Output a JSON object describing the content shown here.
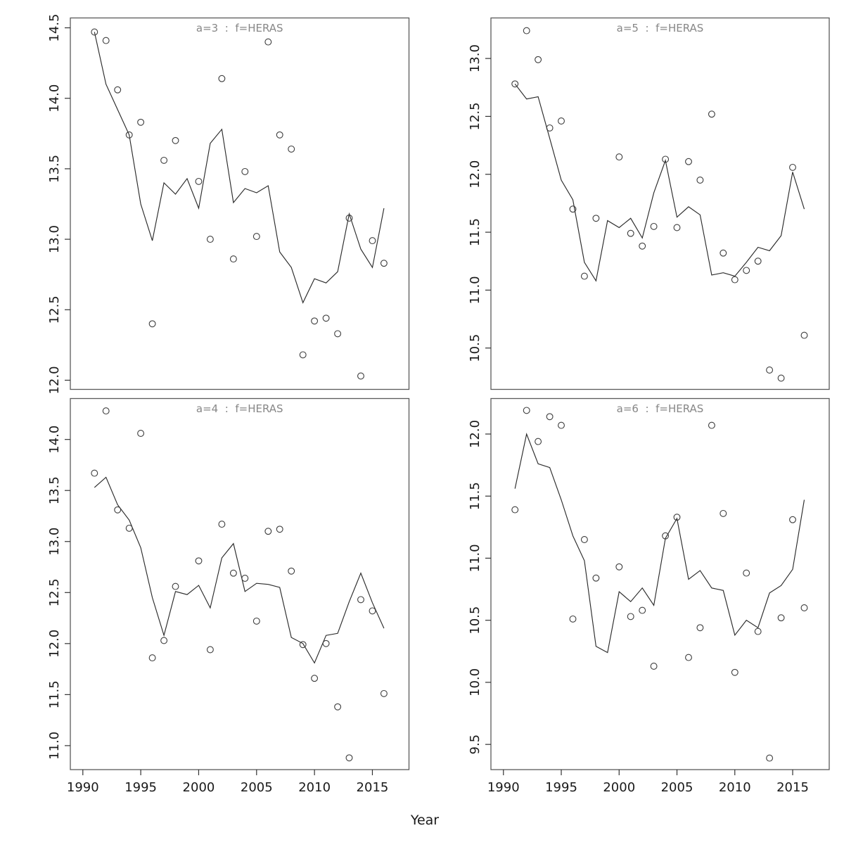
{
  "figure": {
    "xlabel": "Year",
    "background_color": "#ffffff",
    "title_color": "#878787",
    "line_color": "#2b2b2b",
    "point_color": "#3c3c3c",
    "border_color": "#5a5a5a"
  },
  "chart_data": {
    "type": "scatter",
    "description": "2x2 faceted plot of observed (open circles) and fitted (line) log survey index by year",
    "x": [
      1991,
      1992,
      1993,
      1994,
      1995,
      1996,
      1997,
      1998,
      1999,
      2000,
      2001,
      2002,
      2003,
      2004,
      2005,
      2006,
      2007,
      2008,
      2009,
      2010,
      2011,
      2012,
      2013,
      2014,
      2015,
      2016
    ],
    "xlabel": "Year",
    "xlim": [
      1988.92,
      2018.16
    ],
    "x_ticks": [
      {
        "v": 1990,
        "label": "1990"
      },
      {
        "v": 1995,
        "label": "1995"
      },
      {
        "v": 2000,
        "label": "2000"
      },
      {
        "v": 2005,
        "label": "2005"
      },
      {
        "v": 2010,
        "label": "2010"
      },
      {
        "v": 2015,
        "label": "2015"
      }
    ],
    "legend_position": "none",
    "grid": false,
    "panels": [
      {
        "id": "a3",
        "title": "a=3  :  f=HERAS",
        "ylim": [
          11.935,
          14.57
        ],
        "y_ticks": [
          {
            "v": 14.5,
            "label": "14.5"
          },
          {
            "v": 14.0,
            "label": "14.0"
          },
          {
            "v": 13.5,
            "label": "13.5"
          },
          {
            "v": 13.0,
            "label": "13.0"
          },
          {
            "v": 12.5,
            "label": "12.5"
          },
          {
            "v": 12.0,
            "label": "12.0"
          }
        ],
        "series": [
          {
            "name": "observed",
            "style": "points",
            "values": [
              14.47,
              14.41,
              14.06,
              13.74,
              13.83,
              12.4,
              13.56,
              13.7,
              null,
              13.41,
              13.0,
              14.14,
              12.86,
              13.48,
              13.02,
              14.4,
              13.74,
              13.64,
              12.18,
              12.42,
              12.44,
              12.33,
              13.15,
              12.03,
              12.99,
              12.83
            ]
          },
          {
            "name": "fitted",
            "style": "line",
            "values": [
              14.47,
              14.1,
              13.92,
              13.74,
              13.25,
              12.99,
              13.4,
              13.32,
              13.43,
              13.22,
              13.68,
              13.78,
              13.26,
              13.36,
              13.33,
              13.38,
              12.91,
              12.8,
              12.55,
              12.72,
              12.69,
              12.77,
              13.18,
              12.93,
              12.8,
              13.22
            ]
          }
        ]
      },
      {
        "id": "a5",
        "title": "a=5  :  f=HERAS",
        "ylim": [
          10.143,
          13.35
        ],
        "y_ticks": [
          {
            "v": 13.0,
            "label": "13.0"
          },
          {
            "v": 12.5,
            "label": "12.5"
          },
          {
            "v": 12.0,
            "label": "12.0"
          },
          {
            "v": 11.5,
            "label": "11.5"
          },
          {
            "v": 11.0,
            "label": "11.0"
          },
          {
            "v": 10.5,
            "label": "10.5"
          }
        ],
        "series": [
          {
            "name": "observed",
            "style": "points",
            "values": [
              12.78,
              13.24,
              12.99,
              12.4,
              12.46,
              11.7,
              11.12,
              11.62,
              null,
              12.15,
              11.49,
              11.38,
              11.55,
              12.13,
              11.54,
              12.11,
              11.95,
              12.52,
              11.32,
              11.09,
              11.17,
              11.25,
              10.31,
              10.24,
              12.06,
              10.61
            ]
          },
          {
            "name": "fitted",
            "style": "line",
            "values": [
              12.78,
              12.65,
              12.67,
              12.31,
              11.95,
              11.78,
              11.24,
              11.08,
              11.6,
              11.54,
              11.62,
              11.45,
              11.84,
              12.12,
              11.63,
              11.72,
              11.65,
              11.13,
              11.15,
              11.12,
              11.24,
              11.37,
              11.34,
              11.47,
              12.02,
              11.7
            ]
          }
        ]
      },
      {
        "id": "a4",
        "title": "a=4  :  f=HERAS",
        "ylim": [
          10.765,
          14.401
        ],
        "y_ticks": [
          {
            "v": 14.0,
            "label": "14.0"
          },
          {
            "v": 13.5,
            "label": "13.5"
          },
          {
            "v": 13.0,
            "label": "13.0"
          },
          {
            "v": 12.5,
            "label": "12.5"
          },
          {
            "v": 12.0,
            "label": "12.0"
          },
          {
            "v": 11.5,
            "label": "11.5"
          },
          {
            "v": 11.0,
            "label": "11.0"
          }
        ],
        "series": [
          {
            "name": "observed",
            "style": "points",
            "values": [
              13.67,
              14.28,
              13.31,
              13.13,
              14.06,
              11.86,
              12.03,
              12.56,
              null,
              12.81,
              11.94,
              13.17,
              12.69,
              12.64,
              12.22,
              13.1,
              13.12,
              12.71,
              11.99,
              11.66,
              12.0,
              11.38,
              10.88,
              12.43,
              12.32,
              11.51
            ]
          },
          {
            "name": "fitted",
            "style": "line",
            "values": [
              13.53,
              13.63,
              13.36,
              13.21,
              12.94,
              12.45,
              12.08,
              12.51,
              12.48,
              12.57,
              12.35,
              12.84,
              12.98,
              12.51,
              12.59,
              12.58,
              12.55,
              12.06,
              12.0,
              11.81,
              12.08,
              12.1,
              12.41,
              12.69,
              12.4,
              12.15
            ]
          }
        ]
      },
      {
        "id": "a6",
        "title": "a=6  :  f=HERAS",
        "ylim": [
          9.297,
          12.286
        ],
        "y_ticks": [
          {
            "v": 12.0,
            "label": "12.0"
          },
          {
            "v": 11.5,
            "label": "11.5"
          },
          {
            "v": 11.0,
            "label": "11.0"
          },
          {
            "v": 10.5,
            "label": "10.5"
          },
          {
            "v": 10.0,
            "label": "10.0"
          },
          {
            "v": 9.5,
            "label": "9.5"
          }
        ],
        "series": [
          {
            "name": "observed",
            "style": "points",
            "values": [
              11.39,
              12.19,
              11.94,
              12.14,
              12.07,
              10.51,
              11.15,
              10.84,
              null,
              10.93,
              10.53,
              10.58,
              10.13,
              11.18,
              11.33,
              10.2,
              10.44,
              12.07,
              11.36,
              10.08,
              10.88,
              10.41,
              9.39,
              10.52,
              11.31,
              10.6
            ]
          },
          {
            "name": "fitted",
            "style": "line",
            "values": [
              11.56,
              12.0,
              11.76,
              11.73,
              11.47,
              11.18,
              10.98,
              10.29,
              10.24,
              10.73,
              10.65,
              10.76,
              10.62,
              11.16,
              11.32,
              10.83,
              10.9,
              10.76,
              10.74,
              10.38,
              10.5,
              10.44,
              10.72,
              10.78,
              10.91,
              11.47
            ]
          }
        ]
      }
    ]
  }
}
